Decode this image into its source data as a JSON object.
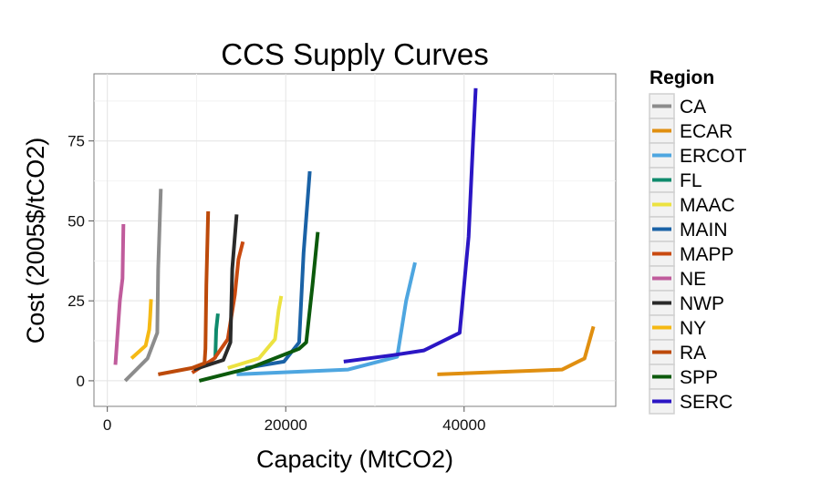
{
  "chart_data": {
    "type": "line",
    "title": "CCS Supply Curves",
    "xlabel": "Capacity (MtCO2)",
    "ylabel": "Cost (2005$/tCO2)",
    "xlim": [
      -1500,
      57000
    ],
    "ylim": [
      -8,
      96
    ],
    "x_ticks": [
      0,
      20000,
      40000
    ],
    "x_tick_labels": [
      "0",
      "20000",
      "40000"
    ],
    "y_ticks": [
      0,
      25,
      50,
      75
    ],
    "y_tick_labels": [
      "0",
      "25",
      "50",
      "75"
    ],
    "grid": true,
    "legend": {
      "title": "Region",
      "position": "right"
    },
    "series": [
      {
        "name": "CA",
        "color": "#8c8c8c",
        "points": [
          [
            2000,
            0
          ],
          [
            4500,
            7
          ],
          [
            5600,
            15
          ],
          [
            5700,
            35
          ],
          [
            6000,
            60
          ]
        ]
      },
      {
        "name": "ECAR",
        "color": "#e08f10",
        "points": [
          [
            37000,
            2
          ],
          [
            51000,
            3.5
          ],
          [
            53500,
            7
          ],
          [
            54500,
            17
          ]
        ]
      },
      {
        "name": "ERCOT",
        "color": "#4ea6e0",
        "points": [
          [
            14500,
            2
          ],
          [
            27000,
            3.5
          ],
          [
            32500,
            7.5
          ],
          [
            33500,
            25
          ],
          [
            34500,
            37
          ]
        ]
      },
      {
        "name": "FL",
        "color": "#0f8a6c",
        "points": [
          [
            12100,
            7
          ],
          [
            12200,
            16
          ],
          [
            12400,
            21
          ]
        ]
      },
      {
        "name": "MAAC",
        "color": "#ece240",
        "points": [
          [
            13500,
            4
          ],
          [
            17000,
            7
          ],
          [
            18800,
            13
          ],
          [
            19200,
            22
          ],
          [
            19500,
            26.5
          ]
        ]
      },
      {
        "name": "MAIN",
        "color": "#1a62a6",
        "points": [
          [
            15500,
            4
          ],
          [
            19800,
            6
          ],
          [
            21500,
            12
          ],
          [
            22000,
            40
          ],
          [
            22700,
            65.5
          ]
        ]
      },
      {
        "name": "MAPP",
        "color": "#c94a10",
        "points": [
          [
            9500,
            2.5
          ],
          [
            12000,
            7
          ],
          [
            13500,
            13
          ],
          [
            14300,
            27
          ],
          [
            14700,
            38
          ],
          [
            15200,
            43.5
          ]
        ]
      },
      {
        "name": "NE",
        "color": "#c05c9c",
        "points": [
          [
            900,
            5
          ],
          [
            1400,
            25
          ],
          [
            1700,
            32
          ],
          [
            1800,
            49
          ]
        ]
      },
      {
        "name": "NWP",
        "color": "#2a2a2a",
        "points": [
          [
            9700,
            3.5
          ],
          [
            13000,
            6.5
          ],
          [
            13800,
            12
          ],
          [
            14000,
            35
          ],
          [
            14500,
            52
          ]
        ]
      },
      {
        "name": "NY",
        "color": "#f5b914",
        "points": [
          [
            2700,
            7
          ],
          [
            4300,
            11
          ],
          [
            4700,
            16
          ],
          [
            4800,
            20
          ],
          [
            4900,
            25.5
          ]
        ]
      },
      {
        "name": "RA",
        "color": "#bd4a0a",
        "points": [
          [
            5700,
            2
          ],
          [
            9500,
            4
          ],
          [
            10900,
            5.5
          ],
          [
            11000,
            10
          ],
          [
            11100,
            30
          ],
          [
            11300,
            53
          ]
        ]
      },
      {
        "name": "SPP",
        "color": "#0c5a0c",
        "points": [
          [
            10300,
            0
          ],
          [
            16000,
            4
          ],
          [
            21500,
            10
          ],
          [
            22300,
            12
          ],
          [
            23000,
            30
          ],
          [
            23600,
            46.5
          ]
        ]
      },
      {
        "name": "SERC",
        "color": "#2b16c4",
        "points": [
          [
            26500,
            6
          ],
          [
            32000,
            8
          ],
          [
            35500,
            9.5
          ],
          [
            39500,
            15
          ],
          [
            40500,
            45
          ],
          [
            41000,
            75
          ],
          [
            41300,
            91.5
          ]
        ]
      }
    ]
  }
}
